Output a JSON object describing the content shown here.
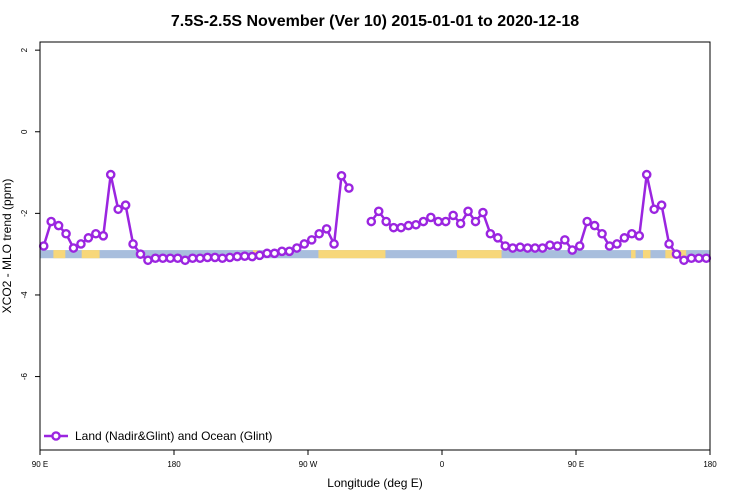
{
  "chart_data": {
    "type": "line",
    "title": "7.5S-2.5S November (Ver 10)   2015-01-01 to 2020-12-18",
    "xlabel": "Longitude (deg E)",
    "ylabel": "XCO2 - MLO trend (ppm)",
    "xlim": [
      90,
      540
    ],
    "ylim": [
      -7.8,
      2.2
    ],
    "x_ticks": [
      {
        "value": 90,
        "label": "90 E"
      },
      {
        "value": 180,
        "label": "180"
      },
      {
        "value": 270,
        "label": "90 W"
      },
      {
        "value": 360,
        "label": "0"
      },
      {
        "value": 450,
        "label": "90 E"
      },
      {
        "value": 540,
        "label": "180"
      }
    ],
    "y_ticks": [
      {
        "value": 2,
        "label": "2"
      },
      {
        "value": 0,
        "label": "0"
      },
      {
        "value": -2,
        "label": "-2"
      },
      {
        "value": -4,
        "label": "-4"
      },
      {
        "value": -6,
        "label": "-6"
      }
    ],
    "grid": false,
    "legend_position": "bottom-left",
    "surface_band": {
      "y_range": [
        -3.1,
        -2.9
      ],
      "ocean_color": "#a8bedd",
      "land_color": "#f7d77a",
      "land_segments": [
        [
          99,
          107
        ],
        [
          118,
          130
        ],
        [
          233,
          236
        ],
        [
          277,
          322
        ],
        [
          370,
          400
        ],
        [
          487,
          490
        ],
        [
          495,
          500
        ],
        [
          510,
          524
        ]
      ]
    },
    "series": [
      {
        "name": "Land (Nadir&Glint) and Ocean (Glint)",
        "color": "#9b25e0",
        "segments": [
          [
            [
              92.5,
              -2.8
            ],
            [
              97.5,
              -2.2
            ],
            [
              102.5,
              -2.3
            ],
            [
              107.5,
              -2.5
            ],
            [
              112.5,
              -2.85
            ],
            [
              117.5,
              -2.75
            ],
            [
              122.5,
              -2.6
            ],
            [
              127.5,
              -2.5
            ],
            [
              132.5,
              -2.55
            ],
            [
              137.5,
              -1.05
            ],
            [
              142.5,
              -1.9
            ],
            [
              147.5,
              -1.8
            ],
            [
              152.5,
              -2.75
            ],
            [
              157.5,
              -3.0
            ],
            [
              162.5,
              -3.15
            ],
            [
              167.5,
              -3.1
            ],
            [
              172.5,
              -3.1
            ],
            [
              177.5,
              -3.1
            ],
            [
              182.5,
              -3.1
            ],
            [
              187.5,
              -3.15
            ],
            [
              192.5,
              -3.1
            ],
            [
              197.5,
              -3.1
            ],
            [
              202.5,
              -3.08
            ],
            [
              207.5,
              -3.08
            ],
            [
              212.5,
              -3.1
            ],
            [
              217.5,
              -3.08
            ],
            [
              222.5,
              -3.06
            ],
            [
              227.5,
              -3.05
            ],
            [
              232.5,
              -3.06
            ],
            [
              237.5,
              -3.03
            ],
            [
              242.5,
              -2.98
            ],
            [
              247.5,
              -2.98
            ],
            [
              252.5,
              -2.93
            ],
            [
              257.5,
              -2.93
            ],
            [
              262.5,
              -2.85
            ],
            [
              267.5,
              -2.75
            ],
            [
              272.5,
              -2.65
            ],
            [
              277.5,
              -2.5
            ],
            [
              282.5,
              -2.38
            ],
            [
              287.5,
              -2.75
            ],
            [
              292.5,
              -1.08
            ],
            [
              297.5,
              -1.38
            ]
          ],
          [
            [
              312.5,
              -2.2
            ],
            [
              317.5,
              -1.95
            ],
            [
              322.5,
              -2.2
            ],
            [
              327.5,
              -2.35
            ],
            [
              332.5,
              -2.35
            ],
            [
              337.5,
              -2.3
            ],
            [
              342.5,
              -2.28
            ],
            [
              347.5,
              -2.2
            ],
            [
              352.5,
              -2.1
            ],
            [
              357.5,
              -2.2
            ],
            [
              362.5,
              -2.2
            ],
            [
              367.5,
              -2.05
            ],
            [
              372.5,
              -2.25
            ],
            [
              377.5,
              -1.95
            ],
            [
              382.5,
              -2.2
            ],
            [
              387.5,
              -1.98
            ],
            [
              392.5,
              -2.5
            ],
            [
              397.5,
              -2.6
            ],
            [
              402.5,
              -2.8
            ],
            [
              407.5,
              -2.85
            ],
            [
              412.5,
              -2.83
            ],
            [
              417.5,
              -2.85
            ],
            [
              422.5,
              -2.85
            ],
            [
              427.5,
              -2.85
            ],
            [
              432.5,
              -2.78
            ],
            [
              437.5,
              -2.8
            ],
            [
              442.5,
              -2.65
            ],
            [
              447.5,
              -2.9
            ],
            [
              452.5,
              -2.8
            ],
            [
              457.5,
              -2.2
            ],
            [
              462.5,
              -2.3
            ],
            [
              467.5,
              -2.5
            ],
            [
              472.5,
              -2.8
            ],
            [
              477.5,
              -2.75
            ],
            [
              482.5,
              -2.6
            ],
            [
              487.5,
              -2.5
            ],
            [
              492.5,
              -2.55
            ],
            [
              497.5,
              -1.05
            ],
            [
              502.5,
              -1.9
            ],
            [
              507.5,
              -1.8
            ],
            [
              512.5,
              -2.75
            ],
            [
              517.5,
              -3.0
            ],
            [
              522.5,
              -3.15
            ],
            [
              527.5,
              -3.1
            ],
            [
              532.5,
              -3.1
            ],
            [
              537.5,
              -3.1
            ]
          ]
        ]
      }
    ]
  }
}
